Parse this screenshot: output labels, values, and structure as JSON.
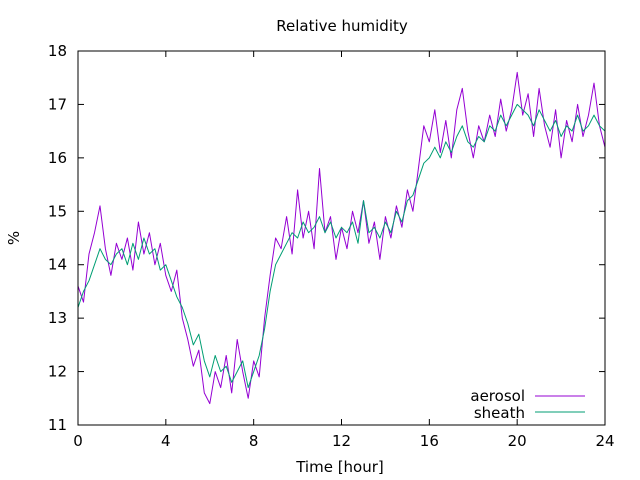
{
  "chart_data": {
    "type": "line",
    "title": "Relative humidity",
    "xlabel": "Time [hour]",
    "ylabel": "%",
    "xlim": [
      0,
      24
    ],
    "ylim": [
      11,
      18
    ],
    "x_ticks": [
      0,
      4,
      8,
      12,
      16,
      20,
      24
    ],
    "y_ticks": [
      11,
      12,
      13,
      14,
      15,
      16,
      17,
      18
    ],
    "grid": false,
    "legend_position": "bottom-right",
    "series": [
      {
        "name": "aerosol",
        "color": "#9400d3",
        "x": [
          0,
          0.25,
          0.5,
          0.75,
          1,
          1.25,
          1.5,
          1.75,
          2,
          2.25,
          2.5,
          2.75,
          3,
          3.25,
          3.5,
          3.75,
          4,
          4.25,
          4.5,
          4.75,
          5,
          5.25,
          5.5,
          5.75,
          6,
          6.25,
          6.5,
          6.75,
          7,
          7.25,
          7.5,
          7.75,
          8,
          8.25,
          8.5,
          8.75,
          9,
          9.25,
          9.5,
          9.75,
          10,
          10.25,
          10.5,
          10.75,
          11,
          11.25,
          11.5,
          11.75,
          12,
          12.25,
          12.5,
          12.75,
          13,
          13.25,
          13.5,
          13.75,
          14,
          14.25,
          14.5,
          14.75,
          15,
          15.25,
          15.5,
          15.75,
          16,
          16.25,
          16.5,
          16.75,
          17,
          17.25,
          17.5,
          17.75,
          18,
          18.25,
          18.5,
          18.75,
          19,
          19.25,
          19.5,
          19.75,
          20,
          20.25,
          20.5,
          20.75,
          21,
          21.25,
          21.5,
          21.75,
          22,
          22.25,
          22.5,
          22.75,
          23,
          23.25,
          23.5,
          23.75,
          24
        ],
        "values": [
          13.6,
          13.3,
          14.2,
          14.6,
          15.1,
          14.3,
          13.8,
          14.4,
          14.1,
          14.5,
          13.9,
          14.8,
          14.2,
          14.6,
          14.0,
          14.4,
          13.8,
          13.5,
          13.9,
          13.0,
          12.6,
          12.1,
          12.4,
          11.6,
          11.4,
          12.0,
          11.7,
          12.3,
          11.6,
          12.6,
          12.0,
          11.5,
          12.2,
          11.9,
          13.0,
          13.8,
          14.5,
          14.3,
          14.9,
          14.2,
          15.4,
          14.5,
          15.0,
          14.3,
          15.8,
          14.6,
          14.9,
          14.1,
          14.7,
          14.3,
          15.0,
          14.6,
          15.2,
          14.4,
          14.8,
          14.1,
          14.9,
          14.5,
          15.1,
          14.7,
          15.4,
          15.0,
          15.8,
          16.6,
          16.3,
          16.9,
          16.1,
          16.7,
          16.0,
          16.9,
          17.3,
          16.5,
          16.0,
          16.6,
          16.3,
          16.8,
          16.4,
          17.1,
          16.5,
          16.9,
          17.6,
          16.8,
          17.2,
          16.4,
          17.3,
          16.6,
          16.2,
          16.9,
          16.0,
          16.7,
          16.3,
          17.0,
          16.4,
          16.8,
          17.4,
          16.6,
          16.2
        ]
      },
      {
        "name": "sheath",
        "color": "#009e73",
        "x": [
          0,
          0.25,
          0.5,
          0.75,
          1,
          1.25,
          1.5,
          1.75,
          2,
          2.25,
          2.5,
          2.75,
          3,
          3.25,
          3.5,
          3.75,
          4,
          4.25,
          4.5,
          4.75,
          5,
          5.25,
          5.5,
          5.75,
          6,
          6.25,
          6.5,
          6.75,
          7,
          7.25,
          7.5,
          7.75,
          8,
          8.25,
          8.5,
          8.75,
          9,
          9.25,
          9.5,
          9.75,
          10,
          10.25,
          10.5,
          10.75,
          11,
          11.25,
          11.5,
          11.75,
          12,
          12.25,
          12.5,
          12.75,
          13,
          13.25,
          13.5,
          13.75,
          14,
          14.25,
          14.5,
          14.75,
          15,
          15.25,
          15.5,
          15.75,
          16,
          16.25,
          16.5,
          16.75,
          17,
          17.25,
          17.5,
          17.75,
          18,
          18.25,
          18.5,
          18.75,
          19,
          19.25,
          19.5,
          19.75,
          20,
          20.25,
          20.5,
          20.75,
          21,
          21.25,
          21.5,
          21.75,
          22,
          22.25,
          22.5,
          22.75,
          23,
          23.25,
          23.5,
          23.75,
          24
        ],
        "values": [
          13.2,
          13.5,
          13.7,
          14.0,
          14.3,
          14.1,
          14.0,
          14.2,
          14.3,
          14.0,
          14.4,
          14.1,
          14.5,
          14.2,
          14.3,
          13.9,
          14.0,
          13.7,
          13.4,
          13.2,
          12.9,
          12.5,
          12.7,
          12.2,
          11.9,
          12.3,
          12.0,
          12.1,
          11.8,
          12.0,
          12.2,
          11.7,
          12.0,
          12.3,
          12.8,
          13.5,
          14.0,
          14.2,
          14.4,
          14.6,
          14.5,
          14.8,
          14.6,
          14.7,
          14.9,
          14.6,
          14.8,
          14.5,
          14.7,
          14.6,
          14.8,
          14.4,
          15.2,
          14.6,
          14.7,
          14.5,
          14.8,
          14.6,
          15.0,
          14.8,
          15.2,
          15.3,
          15.6,
          15.9,
          16.0,
          16.2,
          16.0,
          16.3,
          16.1,
          16.4,
          16.6,
          16.3,
          16.2,
          16.4,
          16.3,
          16.6,
          16.5,
          16.8,
          16.6,
          16.8,
          17.0,
          16.9,
          16.8,
          16.6,
          16.9,
          16.7,
          16.5,
          16.7,
          16.4,
          16.6,
          16.5,
          16.8,
          16.5,
          16.6,
          16.8,
          16.6,
          16.5
        ]
      }
    ]
  }
}
